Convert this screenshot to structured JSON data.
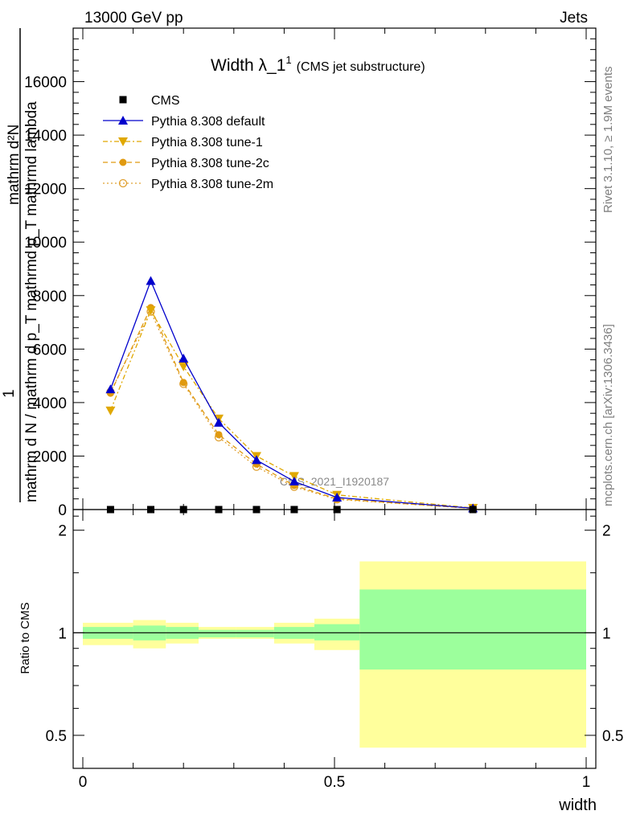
{
  "header": {
    "left": "13000 GeV pp",
    "right": "Jets"
  },
  "side_text": {
    "rivet": "Rivet 3.1.10, ≥ 1.9M events",
    "mcplots": "mcplots.cern.ch [arXiv:1306.3436]"
  },
  "watermark": "CMS_2021_I1920187",
  "chart_data": [
    {
      "type": "line",
      "title": "Width λ_1",
      "title_sup": "1",
      "subtitle": "(CMS jet substructure)",
      "ylabel_top": "mathrm d²N",
      "ylabel_num": "1",
      "ylabel_frac": "mathrm d N / mathrm d p_T mathrmd p_T mathrmd lambda",
      "xlim": [
        0,
        1
      ],
      "ylim": [
        0,
        18000
      ],
      "y_ticks": [
        0,
        2000,
        4000,
        6000,
        8000,
        10000,
        12000,
        14000,
        16000
      ],
      "y_tick_labels": [
        "0",
        "2000",
        "4000",
        "6000",
        "8000",
        "10000",
        "12000",
        "14000",
        "16000"
      ],
      "legend_position": "top-left",
      "x": [
        0.055,
        0.135,
        0.2,
        0.27,
        0.345,
        0.42,
        0.505,
        0.775
      ],
      "series": [
        {
          "name": "CMS",
          "color": "#000000",
          "marker": "square",
          "line": "none",
          "values": [
            0,
            0,
            0,
            0,
            0,
            0,
            0,
            0
          ]
        },
        {
          "name": "Pythia 8.308 default",
          "color": "#0000cc",
          "marker": "triangle-up",
          "line": "solid",
          "values": [
            4500,
            8550,
            5650,
            3250,
            1850,
            1050,
            450,
            50
          ]
        },
        {
          "name": "Pythia 8.308 tune-1",
          "color": "#e0a800",
          "marker": "triangle-down",
          "line": "dashdot",
          "values": [
            3700,
            7450,
            5350,
            3400,
            2000,
            1250,
            550,
            60
          ]
        },
        {
          "name": "Pythia 8.308 tune-2c",
          "color": "#e09a10",
          "marker": "circle",
          "line": "dashed",
          "values": [
            4350,
            7550,
            4750,
            2800,
            1700,
            900,
            400,
            40
          ]
        },
        {
          "name": "Pythia 8.308 tune-2m",
          "color": "#e0a030",
          "marker": "circle-open",
          "line": "dotted",
          "values": [
            4400,
            7400,
            4700,
            2700,
            1600,
            850,
            380,
            40
          ]
        }
      ]
    },
    {
      "type": "area",
      "ylabel": "Ratio to CMS",
      "xlabel": "width",
      "xlim": [
        0,
        1
      ],
      "ylim": [
        0.4,
        2.3
      ],
      "y_ticks": [
        0.5,
        1,
        2
      ],
      "y_tick_labels": [
        "0.5",
        "1",
        "2"
      ],
      "x_ticks": [
        0,
        0.5,
        1
      ],
      "x_tick_labels": [
        "0",
        "0.5",
        "1"
      ],
      "reference_line": 1,
      "bins": [
        {
          "x": [
            0.0,
            0.1
          ],
          "inner": [
            0.96,
            1.04
          ],
          "outer": [
            0.92,
            1.07
          ]
        },
        {
          "x": [
            0.1,
            0.165
          ],
          "inner": [
            0.95,
            1.05
          ],
          "outer": [
            0.9,
            1.09
          ]
        },
        {
          "x": [
            0.165,
            0.23
          ],
          "inner": [
            0.96,
            1.04
          ],
          "outer": [
            0.93,
            1.07
          ]
        },
        {
          "x": [
            0.23,
            0.305
          ],
          "inner": [
            0.97,
            1.02
          ],
          "outer": [
            0.96,
            1.04
          ]
        },
        {
          "x": [
            0.305,
            0.38
          ],
          "inner": [
            0.97,
            1.02
          ],
          "outer": [
            0.96,
            1.04
          ]
        },
        {
          "x": [
            0.38,
            0.46
          ],
          "inner": [
            0.96,
            1.04
          ],
          "outer": [
            0.93,
            1.07
          ]
        },
        {
          "x": [
            0.46,
            0.55
          ],
          "inner": [
            0.95,
            1.06
          ],
          "outer": [
            0.89,
            1.1
          ]
        },
        {
          "x": [
            0.55,
            1.0
          ],
          "inner": [
            0.78,
            1.34
          ],
          "outer": [
            0.46,
            1.62
          ]
        }
      ],
      "colors": {
        "inner": "#9cff9c",
        "outer": "#ffff9c"
      }
    }
  ]
}
